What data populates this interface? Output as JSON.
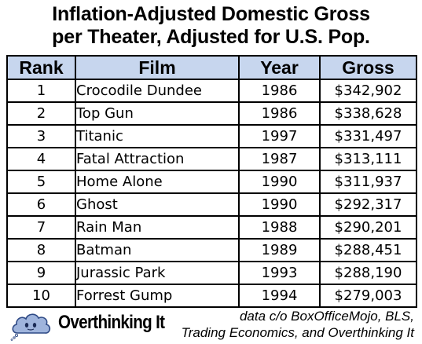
{
  "chart_data": {
    "type": "table",
    "title_lines": [
      "Inflation-Adjusted Domestic Gross",
      "per Theater, Adjusted for U.S. Pop."
    ],
    "columns": [
      "Rank",
      "Film",
      "Year",
      "Gross"
    ],
    "rows": [
      {
        "rank": "1",
        "film": "Crocodile Dundee",
        "year": "1986",
        "gross": "$342,902"
      },
      {
        "rank": "2",
        "film": "Top Gun",
        "year": "1986",
        "gross": "$338,628"
      },
      {
        "rank": "3",
        "film": "Titanic",
        "year": "1997",
        "gross": "$331,497"
      },
      {
        "rank": "4",
        "film": "Fatal Attraction",
        "year": "1987",
        "gross": "$313,111"
      },
      {
        "rank": "5",
        "film": "Home Alone",
        "year": "1990",
        "gross": "$311,937"
      },
      {
        "rank": "6",
        "film": "Ghost",
        "year": "1990",
        "gross": "$292,317"
      },
      {
        "rank": "7",
        "film": "Rain Man",
        "year": "1988",
        "gross": "$290,201"
      },
      {
        "rank": "8",
        "film": "Batman",
        "year": "1989",
        "gross": "$288,451"
      },
      {
        "rank": "9",
        "film": "Jurassic Park",
        "year": "1993",
        "gross": "$288,190"
      },
      {
        "rank": "10",
        "film": "Forrest Gump",
        "year": "1994",
        "gross": "$279,003"
      }
    ]
  },
  "footer": {
    "logo_text": "Overthinking It",
    "logo_icon": "cloud-icon",
    "credit_lines": [
      "data c/o BoxOfficeMojo, BLS,",
      "Trading Economics, and Overthinking It"
    ]
  },
  "colors": {
    "header_fill": "#c7d6ee",
    "border": "#000000",
    "cloud_fill": "#9fb4dc",
    "cloud_stroke": "#2f4a86"
  }
}
